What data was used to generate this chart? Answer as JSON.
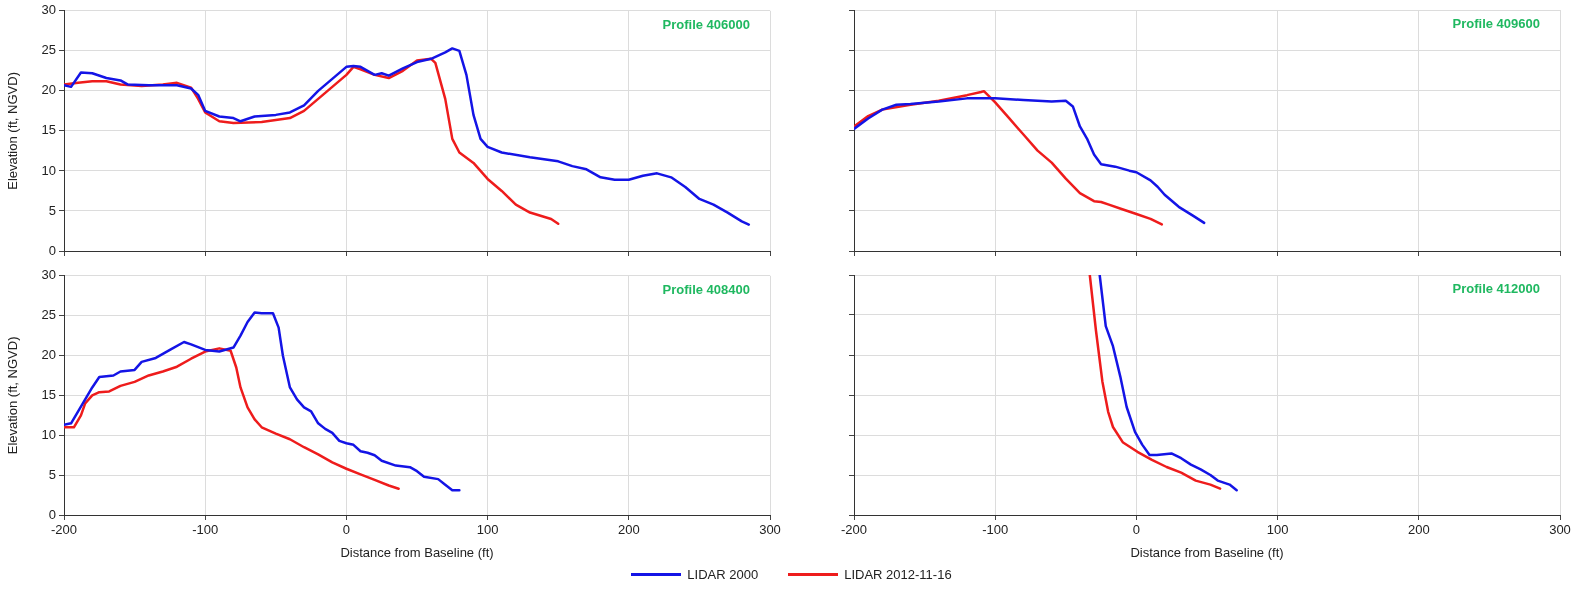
{
  "chart_data": [
    {
      "type": "line",
      "title": "Profile 406000",
      "ylabel": "Elevation (ft, NGVD)",
      "xlim": [
        -200,
        300
      ],
      "xticks": [
        -200,
        -100,
        0,
        100,
        200,
        300
      ],
      "ylim": [
        0,
        30
      ],
      "yticks": [
        0,
        5,
        10,
        15,
        20,
        25,
        30
      ],
      "grid": true,
      "tick_labels": "y",
      "legend": "bottom",
      "line_style": "solid",
      "marker": "none",
      "series": [
        {
          "name": "LIDAR 2000",
          "color": "#1414e6",
          "x": [
            -200,
            -195,
            -188,
            -180,
            -170,
            -160,
            -155,
            -140,
            -120,
            -110,
            -105,
            -100,
            -90,
            -80,
            -75,
            -65,
            -50,
            -40,
            -30,
            -20,
            -10,
            0,
            5,
            10,
            20,
            25,
            30,
            40,
            50,
            60,
            70,
            75,
            80,
            85,
            90,
            95,
            100,
            110,
            130,
            150,
            160,
            170,
            180,
            190,
            200,
            210,
            220,
            230,
            240,
            250,
            260,
            270,
            280,
            285
          ],
          "values": [
            20.7,
            20.5,
            22.3,
            22.2,
            21.6,
            21.3,
            20.8,
            20.7,
            20.7,
            20.3,
            19.5,
            17.5,
            16.8,
            16.6,
            16.2,
            16.8,
            17.0,
            17.3,
            18.2,
            20.0,
            21.5,
            23.0,
            23.1,
            23.0,
            22.0,
            22.2,
            21.9,
            22.8,
            23.6,
            24.0,
            24.8,
            25.3,
            25.0,
            22.0,
            17.0,
            14.0,
            13.0,
            12.3,
            11.7,
            11.2,
            10.6,
            10.2,
            9.2,
            8.9,
            8.9,
            9.4,
            9.7,
            9.2,
            8.0,
            6.5,
            5.8,
            4.8,
            3.7,
            3.3
          ]
        },
        {
          "name": "LIDAR 2012-11-16",
          "color": "#ee1c1c",
          "x": [
            -200,
            -190,
            -180,
            -170,
            -160,
            -145,
            -130,
            -120,
            -110,
            -105,
            -100,
            -90,
            -80,
            -60,
            -40,
            -30,
            -20,
            -10,
            0,
            5,
            10,
            20,
            30,
            40,
            50,
            60,
            63,
            70,
            75,
            80,
            90,
            100,
            110,
            120,
            130,
            145,
            150
          ],
          "values": [
            20.8,
            21.0,
            21.2,
            21.2,
            20.8,
            20.6,
            20.8,
            21.0,
            20.4,
            19.0,
            17.3,
            16.2,
            16.0,
            16.1,
            16.6,
            17.5,
            19.0,
            20.5,
            22.0,
            23.0,
            22.7,
            22.0,
            21.6,
            22.5,
            23.8,
            24.0,
            23.5,
            19.0,
            14.0,
            12.3,
            11.0,
            9.0,
            7.5,
            5.8,
            4.8,
            4.0,
            3.4
          ]
        }
      ]
    },
    {
      "type": "line",
      "title": "Profile 409600",
      "xlim": [
        -200,
        300
      ],
      "xticks": [
        -200,
        -100,
        0,
        100,
        200,
        300
      ],
      "ylim": [
        0,
        30
      ],
      "yticks": [
        0,
        5,
        10,
        15,
        20,
        25,
        30
      ],
      "grid": true,
      "tick_labels": false,
      "line_style": "solid",
      "marker": "none",
      "series": [
        {
          "color": "#1414e6",
          "x": [
            -200,
            -190,
            -180,
            -170,
            -160,
            -140,
            -120,
            -100,
            -80,
            -60,
            -50,
            -45,
            -40,
            -35,
            -30,
            -25,
            -15,
            -5,
            0,
            10,
            15,
            20,
            30,
            40,
            48
          ],
          "values": [
            15.2,
            16.5,
            17.6,
            18.2,
            18.3,
            18.6,
            19.0,
            19.0,
            18.8,
            18.6,
            18.7,
            18.0,
            15.5,
            14.0,
            12.0,
            10.8,
            10.5,
            10.0,
            9.8,
            8.8,
            8.0,
            7.0,
            5.5,
            4.4,
            3.5
          ]
        },
        {
          "color": "#ee1c1c",
          "x": [
            -200,
            -190,
            -180,
            -160,
            -140,
            -120,
            -110,
            -108,
            -100,
            -90,
            -80,
            -70,
            -60,
            -50,
            -40,
            -30,
            -25,
            -20,
            -10,
            0,
            10,
            18
          ],
          "values": [
            15.5,
            16.8,
            17.6,
            18.2,
            18.7,
            19.4,
            19.8,
            19.9,
            18.5,
            16.5,
            14.5,
            12.5,
            11.0,
            9.0,
            7.2,
            6.2,
            6.1,
            5.8,
            5.2,
            4.6,
            4.0,
            3.3
          ]
        }
      ]
    },
    {
      "type": "line",
      "title": "Profile 408400",
      "xlabel": "Distance from Baseline (ft)",
      "ylabel": "Elevation (ft, NGVD)",
      "xlim": [
        -200,
        300
      ],
      "xticks": [
        -200,
        -100,
        0,
        100,
        200,
        300
      ],
      "ylim": [
        0,
        30
      ],
      "yticks": [
        0,
        5,
        10,
        15,
        20,
        25,
        30
      ],
      "grid": true,
      "line_style": "solid",
      "marker": "none",
      "series": [
        {
          "color": "#1414e6",
          "x": [
            -200,
            -195,
            -190,
            -185,
            -180,
            -175,
            -170,
            -165,
            -160,
            -150,
            -145,
            -135,
            -125,
            -115,
            -110,
            -100,
            -90,
            -80,
            -75,
            -70,
            -65,
            -60,
            -52,
            -48,
            -45,
            -40,
            -35,
            -30,
            -25,
            -20,
            -15,
            -10,
            -5,
            0,
            5,
            10,
            15,
            20,
            25,
            35,
            45,
            50,
            55,
            65,
            70,
            75,
            80
          ],
          "values": [
            11.3,
            11.5,
            13.0,
            14.5,
            16.0,
            17.3,
            17.4,
            17.5,
            18.0,
            18.2,
            19.2,
            19.7,
            20.7,
            21.7,
            21.4,
            20.7,
            20.5,
            21.0,
            22.5,
            24.2,
            25.4,
            25.3,
            25.3,
            23.5,
            20.0,
            16.0,
            14.5,
            13.5,
            13.0,
            11.5,
            10.8,
            10.3,
            9.3,
            9.0,
            8.8,
            8.0,
            7.8,
            7.5,
            6.8,
            6.2,
            6.0,
            5.5,
            4.8,
            4.5,
            3.8,
            3.1,
            3.1
          ]
        },
        {
          "color": "#ee1c1c",
          "x": [
            -200,
            -193,
            -188,
            -185,
            -180,
            -175,
            -168,
            -160,
            -150,
            -140,
            -130,
            -120,
            -110,
            -100,
            -90,
            -82,
            -78,
            -75,
            -70,
            -65,
            -60,
            -50,
            -40,
            -30,
            -20,
            -10,
            0,
            10,
            20,
            30,
            37
          ],
          "values": [
            11.0,
            11.0,
            12.5,
            14.0,
            15.0,
            15.4,
            15.5,
            16.2,
            16.7,
            17.5,
            18.0,
            18.6,
            19.6,
            20.5,
            20.9,
            20.6,
            18.5,
            16.0,
            13.5,
            12.0,
            11.0,
            10.2,
            9.5,
            8.5,
            7.6,
            6.6,
            5.8,
            5.1,
            4.4,
            3.7,
            3.3
          ]
        }
      ]
    },
    {
      "type": "line",
      "title": "Profile 412000",
      "xlabel": "Distance from Baseline (ft)",
      "xlim": [
        -200,
        300
      ],
      "xticks": [
        -200,
        -100,
        0,
        100,
        200,
        300
      ],
      "ylim": [
        0,
        30
      ],
      "yticks": [
        0,
        5,
        10,
        15,
        20,
        25,
        30
      ],
      "grid": true,
      "tick_labels": "x",
      "line_style": "solid",
      "marker": "none",
      "series": [
        {
          "color": "#1414e6",
          "x": [
            -26,
            -21.7,
            -16.6,
            -11.4,
            -6.9,
            -1,
            4.1,
            9.3,
            14.5,
            24.8,
            31.7,
            38.6,
            45.5,
            52.4,
            57.6,
            66,
            71
          ],
          "values": [
            30,
            23.6,
            21.1,
            17.3,
            13.5,
            10.4,
            8.8,
            7.5,
            7.5,
            7.7,
            7.1,
            6.3,
            5.7,
            5.0,
            4.3,
            3.8,
            3.1
          ]
        },
        {
          "color": "#ee1c1c",
          "x": [
            -33,
            -28.6,
            -24.1,
            -20,
            -16.6,
            -9.7,
            0.7,
            11,
            21.4,
            31.7,
            42,
            52.4,
            59.3
          ],
          "values": [
            30,
            23,
            16.7,
            12.9,
            11.0,
            9.1,
            7.9,
            6.9,
            6.0,
            5.3,
            4.3,
            3.8,
            3.3
          ]
        }
      ]
    }
  ]
}
